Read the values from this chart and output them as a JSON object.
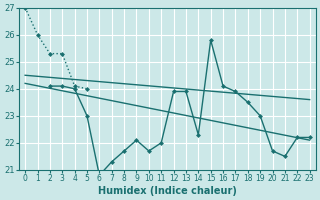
{
  "xlabel": "Humidex (Indice chaleur)",
  "bg_color": "#cce8e8",
  "grid_color": "#ffffff",
  "line_color": "#1a7070",
  "xlim": [
    -0.5,
    23.5
  ],
  "ylim": [
    21,
    27
  ],
  "xticks": [
    0,
    1,
    2,
    3,
    4,
    5,
    6,
    7,
    8,
    9,
    10,
    11,
    12,
    13,
    14,
    15,
    16,
    17,
    18,
    19,
    20,
    21,
    22,
    23
  ],
  "yticks": [
    21,
    22,
    23,
    24,
    25,
    26,
    27
  ],
  "line1_x": [
    0,
    1,
    2,
    3,
    4,
    5
  ],
  "line1_y": [
    27.0,
    26.0,
    25.3,
    25.3,
    24.1,
    24.0
  ],
  "line1_style": "dotted",
  "line2_x": [
    2,
    3,
    4,
    5,
    6,
    7,
    8,
    9,
    10,
    11,
    12,
    13,
    14,
    15,
    16,
    17,
    18,
    19,
    20,
    21,
    22,
    23
  ],
  "line2_y": [
    24.1,
    24.1,
    24.0,
    23.0,
    20.8,
    21.3,
    21.7,
    22.1,
    21.7,
    22.0,
    23.9,
    23.9,
    22.3,
    25.8,
    24.1,
    23.9,
    23.5,
    23.0,
    21.7,
    21.5,
    22.2,
    22.2
  ],
  "line2_style": "solid",
  "line3_x": [
    0,
    23
  ],
  "line3_y": [
    24.5,
    23.6
  ],
  "line3_style": "solid",
  "line4_x": [
    0,
    23
  ],
  "line4_y": [
    24.2,
    22.1
  ],
  "line4_style": "solid"
}
